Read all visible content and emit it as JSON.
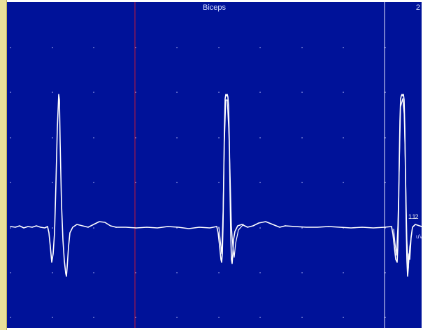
{
  "trace": {
    "title": "Biceps",
    "page_number": "2",
    "amp_readout": "1.12",
    "amp_readout_suffix": "uV"
  },
  "colors": {
    "background": "#001299",
    "trace": "#ffffff",
    "grid_dot": "#c8ccff",
    "cursor_red": "#c0183a",
    "cursor_white": "#e6e6ff",
    "left_panel": "#e8e09a"
  },
  "cursors": [
    {
      "name": "red-cursor",
      "color": "#c0183a"
    },
    {
      "name": "white-cursor",
      "color": "#e6e6ff"
    }
  ]
}
